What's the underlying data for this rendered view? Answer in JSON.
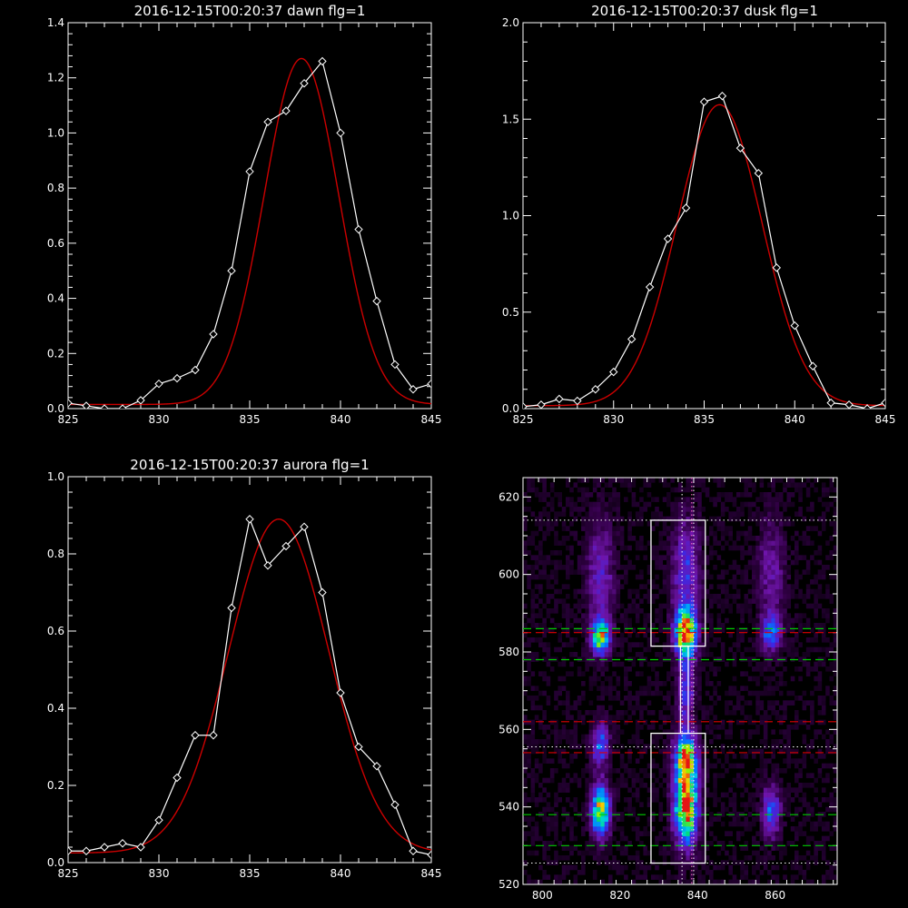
{
  "chart_data": [
    {
      "id": "dawn",
      "type": "line",
      "title": "2016-12-15T00:20:37 dawn flg=1",
      "xlim": [
        825,
        845
      ],
      "ylim": [
        0,
        1.4
      ],
      "xticks": [
        825,
        830,
        835,
        840,
        845
      ],
      "yticks": [
        0.0,
        0.2,
        0.4,
        0.6,
        0.8,
        1.0,
        1.2,
        1.4
      ],
      "ytick_labels": [
        "0.0",
        "0.2",
        "0.4",
        "0.6",
        "0.8",
        "1.0",
        "1.2",
        "1.4"
      ],
      "grid": false,
      "series": [
        {
          "kind": "measured",
          "color": "#ffffff",
          "marker": "diamond",
          "x": [
            825,
            826,
            827,
            828,
            829,
            830,
            831,
            832,
            833,
            834,
            835,
            836,
            837,
            838,
            839,
            840,
            841,
            842,
            843,
            844,
            845
          ],
          "y": [
            0.02,
            0.01,
            0.0,
            0.0,
            0.03,
            0.09,
            0.11,
            0.14,
            0.27,
            0.5,
            0.86,
            1.04,
            1.08,
            1.18,
            1.26,
            1.0,
            0.65,
            0.39,
            0.16,
            0.07,
            0.09
          ]
        },
        {
          "kind": "gaussian_fit",
          "color": "#cc0000",
          "amplitude": 1.255,
          "center": 837.85,
          "sigma": 2.05,
          "offset": 0.015
        }
      ]
    },
    {
      "id": "dusk",
      "type": "line",
      "title": "2016-12-15T00:20:37 dusk flg=1",
      "xlim": [
        825,
        845
      ],
      "ylim": [
        0,
        2.0
      ],
      "xticks": [
        825,
        830,
        835,
        840,
        845
      ],
      "yticks": [
        0.0,
        0.5,
        1.0,
        1.5,
        2.0
      ],
      "ytick_labels": [
        "0.0",
        "0.5",
        "1.0",
        "1.5",
        "2.0"
      ],
      "grid": false,
      "series": [
        {
          "kind": "measured",
          "color": "#ffffff",
          "marker": "diamond",
          "x": [
            825,
            826,
            827,
            828,
            829,
            830,
            831,
            832,
            833,
            834,
            835,
            836,
            837,
            838,
            839,
            840,
            841,
            842,
            843,
            844,
            845
          ],
          "y": [
            0.01,
            0.02,
            0.05,
            0.04,
            0.1,
            0.19,
            0.36,
            0.63,
            0.88,
            1.04,
            1.59,
            1.62,
            1.35,
            1.22,
            0.73,
            0.43,
            0.22,
            0.03,
            0.02,
            0.0,
            0.03
          ]
        },
        {
          "kind": "gaussian_fit",
          "color": "#cc0000",
          "amplitude": 1.56,
          "center": 835.85,
          "sigma": 2.35,
          "offset": 0.015
        }
      ]
    },
    {
      "id": "aurora",
      "type": "line",
      "title": "2016-12-15T00:20:37 aurora flg=1",
      "xlim": [
        825,
        845
      ],
      "ylim": [
        0,
        1.0
      ],
      "xticks": [
        825,
        830,
        835,
        840,
        845
      ],
      "yticks": [
        0.0,
        0.2,
        0.4,
        0.6,
        0.8,
        1.0
      ],
      "ytick_labels": [
        "0.0",
        "0.2",
        "0.4",
        "0.6",
        "0.8",
        "1.0"
      ],
      "grid": false,
      "series": [
        {
          "kind": "measured",
          "color": "#ffffff",
          "marker": "diamond",
          "x": [
            825,
            826,
            827,
            828,
            829,
            830,
            831,
            832,
            833,
            834,
            835,
            836,
            837,
            838,
            839,
            840,
            841,
            842,
            843,
            844,
            845
          ],
          "y": [
            0.03,
            0.03,
            0.04,
            0.05,
            0.04,
            0.11,
            0.22,
            0.33,
            0.33,
            0.66,
            0.89,
            0.77,
            0.82,
            0.87,
            0.7,
            0.44,
            0.3,
            0.25,
            0.15,
            0.03,
            0.02
          ]
        },
        {
          "kind": "gaussian_fit",
          "color": "#cc0000",
          "amplitude": 0.865,
          "center": 836.6,
          "sigma": 2.75,
          "offset": 0.025
        }
      ]
    },
    {
      "id": "image",
      "type": "heatmap",
      "title": "",
      "xlim": [
        795,
        876
      ],
      "ylim": [
        520,
        625
      ],
      "xticks": [
        800,
        820,
        840,
        860
      ],
      "yticks": [
        520,
        540,
        560,
        580,
        600,
        620
      ],
      "colormap": "rainbow",
      "grid": false,
      "emission_blobs": [
        {
          "x": 815,
          "y": 584,
          "sx": 1.6,
          "sy": 3.0,
          "amp": 0.75
        },
        {
          "x": 837,
          "y": 585,
          "sx": 1.8,
          "sy": 4.0,
          "amp": 1.0
        },
        {
          "x": 859,
          "y": 585,
          "sx": 1.6,
          "sy": 3.0,
          "amp": 0.45
        },
        {
          "x": 815,
          "y": 539,
          "sx": 1.6,
          "sy": 4.5,
          "amp": 0.8
        },
        {
          "x": 837,
          "y": 541,
          "sx": 2.0,
          "sy": 7.0,
          "amp": 1.0
        },
        {
          "x": 837,
          "y": 553,
          "sx": 2.0,
          "sy": 4.0,
          "amp": 0.7
        },
        {
          "x": 859,
          "y": 539,
          "sx": 1.6,
          "sy": 4.5,
          "amp": 0.4
        },
        {
          "x": 815,
          "y": 556,
          "sx": 1.5,
          "sy": 4.0,
          "amp": 0.4
        },
        {
          "x": 837,
          "y": 570,
          "sx": 1.5,
          "sy": 6.0,
          "amp": 0.35
        },
        {
          "x": 815,
          "y": 600,
          "sx": 2.5,
          "sy": 10.0,
          "amp": 0.25
        },
        {
          "x": 837,
          "y": 600,
          "sx": 2.5,
          "sy": 10.0,
          "amp": 0.3
        },
        {
          "x": 859,
          "y": 600,
          "sx": 2.5,
          "sy": 10.0,
          "amp": 0.2
        }
      ],
      "overlays": {
        "white_boxes": [
          {
            "x0": 828,
            "x1": 842,
            "y0": 581.5,
            "y1": 614
          },
          {
            "x0": 828,
            "x1": 842,
            "y0": 525.5,
            "y1": 559
          }
        ],
        "white_connector": {
          "x0": 835.6,
          "x1": 837.6,
          "y0": 559,
          "y1": 581.5
        },
        "white_dotted_h": [
          614,
          525.5,
          555.5
        ],
        "white_dotted_v": [
          836,
          839
        ],
        "pink_dotted_v": [
          838.5
        ],
        "green_dashed_h": [
          586,
          578,
          538,
          530
        ],
        "red_dashed_h": [
          562,
          554,
          585
        ]
      }
    }
  ]
}
